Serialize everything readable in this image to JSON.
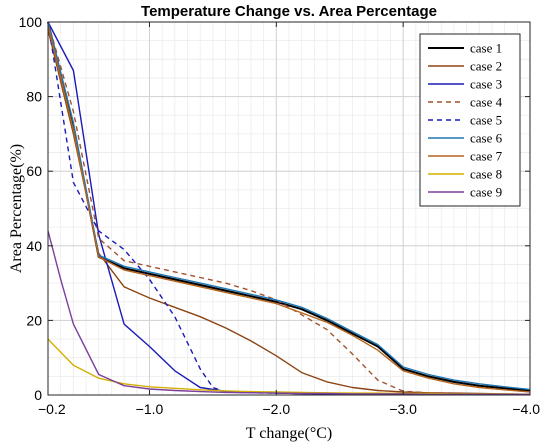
{
  "chart_data": {
    "type": "line",
    "title": "Temperature Change vs. Area Percentage",
    "xlabel": "T change(°C)",
    "ylabel": "Area Percentage(%)",
    "xlim": [
      -0.2,
      -4.0
    ],
    "ylim": [
      0,
      100
    ],
    "x_reversed": true,
    "xticks": [
      -0.2,
      -1.0,
      -2.0,
      -3.0,
      -4.0
    ],
    "xtick_labels": [
      "−0.2",
      "−1.0",
      "−2.0",
      "−3.0",
      "−4.0"
    ],
    "yticks": [
      0,
      20,
      40,
      60,
      80,
      100
    ],
    "ytick_labels": [
      "0",
      "20",
      "40",
      "60",
      "80",
      "100"
    ],
    "grid": true,
    "minor_grid": true,
    "legend_position": "top-right",
    "series": [
      {
        "name": "case 1",
        "color": "#000000",
        "dash": "solid",
        "x": [
          -0.2,
          -0.4,
          -0.6,
          -0.8,
          -1.0,
          -1.2,
          -1.4,
          -1.6,
          -1.8,
          -2.0,
          -2.2,
          -2.4,
          -2.6,
          -2.8,
          -3.0,
          -3.2,
          -3.4,
          -3.6,
          -3.8,
          -4.0
        ],
        "y": [
          100,
          72,
          37,
          34,
          32.5,
          31,
          29.5,
          28,
          26.5,
          25,
          23,
          20,
          16.5,
          13,
          7,
          5,
          3.5,
          2.5,
          1.8,
          1.2
        ]
      },
      {
        "name": "case 2",
        "color": "#8B4513",
        "dash": "solid",
        "x": [
          -0.2,
          -0.4,
          -0.6,
          -0.8,
          -1.0,
          -1.2,
          -1.4,
          -1.6,
          -1.8,
          -2.0,
          -2.2,
          -2.4,
          -2.6,
          -2.8,
          -3.0,
          -3.2,
          -3.4,
          -3.6,
          -3.8,
          -4.0
        ],
        "y": [
          98,
          70,
          38,
          29,
          26,
          23.5,
          21,
          18,
          14.5,
          10.5,
          6,
          3.5,
          2,
          1.2,
          0.8,
          0.6,
          0.5,
          0.4,
          0.3,
          0.2
        ]
      },
      {
        "name": "case 3",
        "color": "#1a1ab8",
        "dash": "solid",
        "x": [
          -0.2,
          -0.4,
          -0.6,
          -0.8,
          -1.0,
          -1.2,
          -1.4,
          -1.6,
          -1.8,
          -2.0,
          -2.2,
          -2.4,
          -2.6,
          -2.8,
          -3.0,
          -3.2,
          -3.4,
          -3.6,
          -3.8,
          -4.0
        ],
        "y": [
          100,
          87,
          43,
          19,
          13,
          6.5,
          2,
          1,
          0.7,
          0.5,
          0.4,
          0.3,
          0.3,
          0.2,
          0.2,
          0.2,
          0.1,
          0.1,
          0.1,
          0.1
        ]
      },
      {
        "name": "case 4",
        "color": "#a0522d",
        "dash": "dashed",
        "x": [
          -0.2,
          -0.4,
          -0.6,
          -0.8,
          -1.0,
          -1.2,
          -1.4,
          -1.6,
          -1.8,
          -2.0,
          -2.2,
          -2.4,
          -2.6,
          -2.8,
          -3.0,
          -3.2,
          -3.4,
          -3.6,
          -3.8,
          -4.0
        ],
        "y": [
          100,
          76,
          42,
          36,
          34.5,
          33,
          31.5,
          30,
          28,
          25.5,
          21.5,
          17.5,
          11,
          4,
          1,
          0.6,
          0.4,
          0.3,
          0.2,
          0.2
        ]
      },
      {
        "name": "case 5",
        "color": "#1a1ab8",
        "dash": "dashed",
        "x": [
          -0.2,
          -0.4,
          -0.6,
          -0.8,
          -1.0,
          -1.2,
          -1.4,
          -1.5,
          -1.6,
          -1.8,
          -2.0,
          -2.2,
          -2.4,
          -2.6,
          -2.8,
          -3.0,
          -3.2,
          -3.4,
          -3.6,
          -3.8,
          -4.0
        ],
        "y": [
          100,
          57,
          44,
          39,
          31,
          21,
          7,
          2,
          0.8,
          0.6,
          0.5,
          0.4,
          0.3,
          0.3,
          0.2,
          0.2,
          0.2,
          0.1,
          0.1,
          0.1,
          0.1
        ]
      },
      {
        "name": "case 6",
        "color": "#1f77b4",
        "dash": "solid",
        "x": [
          -0.2,
          -0.4,
          -0.6,
          -0.8,
          -1.0,
          -1.2,
          -1.4,
          -1.6,
          -1.8,
          -2.0,
          -2.2,
          -2.4,
          -2.6,
          -2.8,
          -3.0,
          -3.2,
          -3.4,
          -3.6,
          -3.8,
          -4.0
        ],
        "y": [
          100,
          73,
          37.5,
          34.5,
          33,
          31.5,
          30,
          28.5,
          27,
          25.5,
          23.5,
          20.5,
          17,
          13.5,
          7.5,
          5.5,
          4,
          3,
          2.2,
          1.5
        ]
      },
      {
        "name": "case 7",
        "color": "#b5651d",
        "dash": "solid",
        "x": [
          -0.2,
          -0.4,
          -0.6,
          -0.8,
          -1.0,
          -1.2,
          -1.4,
          -1.6,
          -1.8,
          -2.0,
          -2.2,
          -2.4,
          -2.6,
          -2.8,
          -3.0,
          -3.2,
          -3.4,
          -3.6,
          -3.8,
          -4.0
        ],
        "y": [
          99,
          71,
          37,
          33.5,
          32,
          30.5,
          29,
          27.5,
          26,
          24.5,
          22,
          19.5,
          16,
          12,
          6.5,
          4.5,
          3,
          2,
          1.4,
          0.8
        ]
      },
      {
        "name": "case 8",
        "color": "#d4b000",
        "dash": "solid",
        "x": [
          -0.2,
          -0.4,
          -0.6,
          -0.8,
          -1.0,
          -1.2,
          -1.4,
          -1.6,
          -1.8,
          -2.0,
          -2.2,
          -2.4,
          -2.6,
          -2.8,
          -3.0,
          -3.2,
          -3.4,
          -3.6,
          -3.8,
          -4.0
        ],
        "y": [
          15,
          8,
          4.5,
          3,
          2.2,
          1.8,
          1.4,
          1.1,
          0.9,
          0.8,
          0.7,
          0.6,
          0.5,
          0.5,
          0.4,
          0.4,
          0.3,
          0.3,
          0.3,
          0.2
        ]
      },
      {
        "name": "case 9",
        "color": "#7b3f9e",
        "dash": "solid",
        "x": [
          -0.2,
          -0.3,
          -0.4,
          -0.6,
          -0.8,
          -1.0,
          -1.2,
          -1.4,
          -1.6,
          -1.8,
          -2.0,
          -2.2,
          -2.4,
          -2.6,
          -2.8,
          -3.0,
          -3.2,
          -3.4,
          -3.6,
          -3.8,
          -4.0
        ],
        "y": [
          44,
          31,
          19,
          5.5,
          2.5,
          1.6,
          1.2,
          0.9,
          0.7,
          0.6,
          0.5,
          0.4,
          0.4,
          0.3,
          0.3,
          0.3,
          0.2,
          0.2,
          0.2,
          0.2,
          0.2
        ]
      }
    ]
  }
}
